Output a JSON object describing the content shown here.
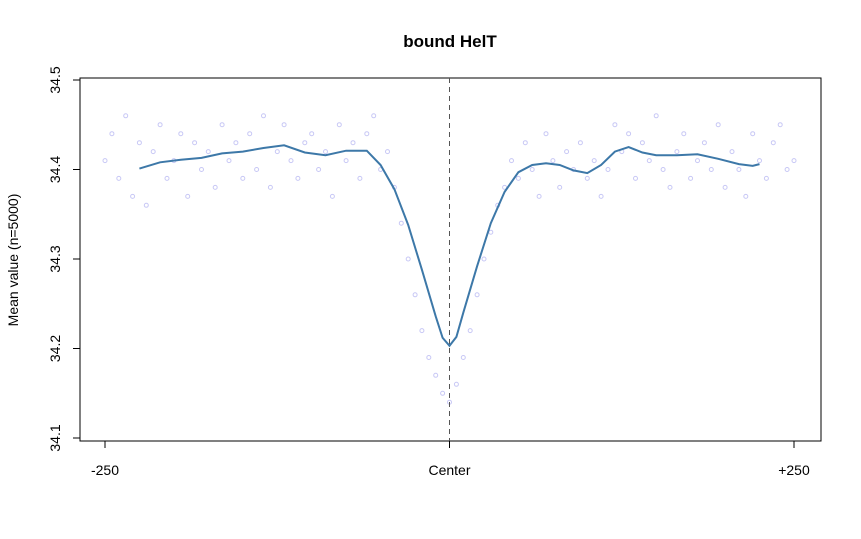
{
  "chart_data": {
    "type": "scatter",
    "title": "bound HelT",
    "xlabel": "",
    "ylabel": "Mean value (n=5000)",
    "xlim": [
      -250,
      250
    ],
    "ylim": [
      34.1,
      34.5
    ],
    "x_tick_values": [
      -250,
      0,
      250
    ],
    "x_tick_labels": [
      "-250",
      "Center",
      "+250"
    ],
    "y_tick_values": [
      34.1,
      34.2,
      34.3,
      34.4,
      34.5
    ],
    "y_tick_labels": [
      "34.1",
      "34.2",
      "34.3",
      "34.4",
      "34.5"
    ],
    "grid": false,
    "center_line": {
      "x": 0,
      "style": "dashed"
    },
    "colors": {
      "points": "#c8c8f5",
      "smooth": "#3d78a8",
      "axis": "#000000",
      "center_line": "#555555"
    },
    "series": [
      {
        "kind": "points",
        "x": [
          -250,
          -245,
          -240,
          -235,
          -230,
          -225,
          -220,
          -215,
          -210,
          -205,
          -200,
          -195,
          -190,
          -185,
          -180,
          -175,
          -170,
          -165,
          -160,
          -155,
          -150,
          -145,
          -140,
          -135,
          -130,
          -125,
          -120,
          -115,
          -110,
          -105,
          -100,
          -95,
          -90,
          -85,
          -80,
          -75,
          -70,
          -65,
          -60,
          -55,
          -50,
          -45,
          -40,
          -35,
          -30,
          -25,
          -20,
          -15,
          -10,
          -5,
          0,
          5,
          10,
          15,
          20,
          25,
          30,
          35,
          40,
          45,
          50,
          55,
          60,
          65,
          70,
          75,
          80,
          85,
          90,
          95,
          100,
          105,
          110,
          115,
          120,
          125,
          130,
          135,
          140,
          145,
          150,
          155,
          160,
          165,
          170,
          175,
          180,
          185,
          190,
          195,
          200,
          205,
          210,
          215,
          220,
          225,
          230,
          235,
          240,
          245,
          250
        ],
        "y": [
          34.41,
          34.44,
          34.39,
          34.46,
          34.37,
          34.43,
          34.36,
          34.42,
          34.45,
          34.39,
          34.41,
          34.44,
          34.37,
          34.43,
          34.4,
          34.42,
          34.38,
          34.45,
          34.41,
          34.43,
          34.39,
          34.44,
          34.4,
          34.46,
          34.38,
          34.42,
          34.45,
          34.41,
          34.39,
          34.43,
          34.44,
          34.4,
          34.42,
          34.37,
          34.45,
          34.41,
          34.43,
          34.39,
          34.44,
          34.46,
          34.4,
          34.42,
          34.38,
          34.34,
          34.3,
          34.26,
          34.22,
          34.19,
          34.17,
          34.15,
          34.14,
          34.16,
          34.19,
          34.22,
          34.26,
          34.3,
          34.33,
          34.36,
          34.38,
          34.41,
          34.39,
          34.43,
          34.4,
          34.37,
          34.44,
          34.41,
          34.38,
          34.42,
          34.4,
          34.43,
          34.39,
          34.41,
          34.37,
          34.4,
          34.45,
          34.42,
          34.44,
          34.39,
          34.43,
          34.41,
          34.46,
          34.4,
          34.38,
          34.42,
          34.44,
          34.39,
          34.41,
          34.43,
          34.4,
          34.45,
          34.38,
          34.42,
          34.4,
          34.37,
          34.44,
          34.41,
          34.39,
          34.43,
          34.45,
          34.4,
          34.41
        ]
      },
      {
        "kind": "smooth",
        "x": [
          -225,
          -210,
          -195,
          -180,
          -165,
          -150,
          -135,
          -120,
          -105,
          -90,
          -75,
          -60,
          -50,
          -40,
          -30,
          -20,
          -10,
          -5,
          0,
          5,
          10,
          20,
          30,
          40,
          50,
          60,
          70,
          80,
          90,
          100,
          110,
          120,
          130,
          140,
          150,
          165,
          180,
          195,
          210,
          220,
          225
        ],
        "y": [
          34.401,
          34.408,
          34.411,
          34.413,
          34.418,
          34.42,
          34.424,
          34.427,
          34.419,
          34.416,
          34.421,
          34.421,
          34.405,
          34.378,
          34.338,
          34.288,
          34.236,
          34.212,
          34.203,
          34.213,
          34.24,
          34.292,
          34.34,
          34.375,
          34.397,
          34.405,
          34.407,
          34.405,
          34.399,
          34.396,
          34.405,
          34.42,
          34.425,
          34.419,
          34.416,
          34.416,
          34.417,
          34.412,
          34.406,
          34.404,
          34.406
        ]
      }
    ]
  }
}
